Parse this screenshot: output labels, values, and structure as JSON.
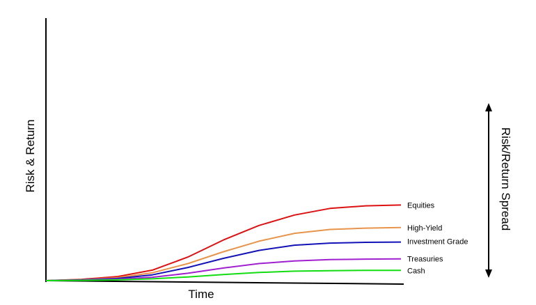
{
  "chart_data": {
    "type": "line",
    "title": "",
    "xlabel": "Time",
    "ylabel": "Risk & Return",
    "right_annotation": "Risk/Return Spread",
    "grid": false,
    "legend": "inline labels at right end of each line",
    "ylim": [
      0,
      100
    ],
    "x": [
      0,
      1,
      2,
      3,
      4,
      5,
      6,
      7,
      8,
      9,
      10
    ],
    "series": [
      {
        "name": "Equities",
        "color": "#dd1111",
        "values": [
          0,
          0.5,
          1.5,
          4,
          9,
          15.5,
          21,
          25,
          27.5,
          28.5,
          28.8
        ]
      },
      {
        "name": "High-Yield",
        "color": "#e8944a",
        "values": [
          0,
          0.4,
          1.1,
          3,
          6.5,
          11,
          15,
          18,
          19.5,
          20,
          20.2
        ]
      },
      {
        "name": "Investment Grade",
        "color": "#1212b8",
        "values": [
          0,
          0.3,
          0.8,
          2.2,
          5,
          8.5,
          11.5,
          13.5,
          14.3,
          14.6,
          14.7
        ]
      },
      {
        "name": "Treasuries",
        "color": "#a020d0",
        "values": [
          0,
          0.2,
          0.5,
          1.3,
          2.8,
          4.8,
          6.5,
          7.5,
          8,
          8.2,
          8.3
        ]
      },
      {
        "name": "Cash",
        "color": "#11dd11",
        "values": [
          0,
          0.1,
          0.3,
          0.7,
          1.4,
          2.3,
          3.1,
          3.6,
          3.8,
          3.9,
          3.9
        ]
      }
    ]
  }
}
